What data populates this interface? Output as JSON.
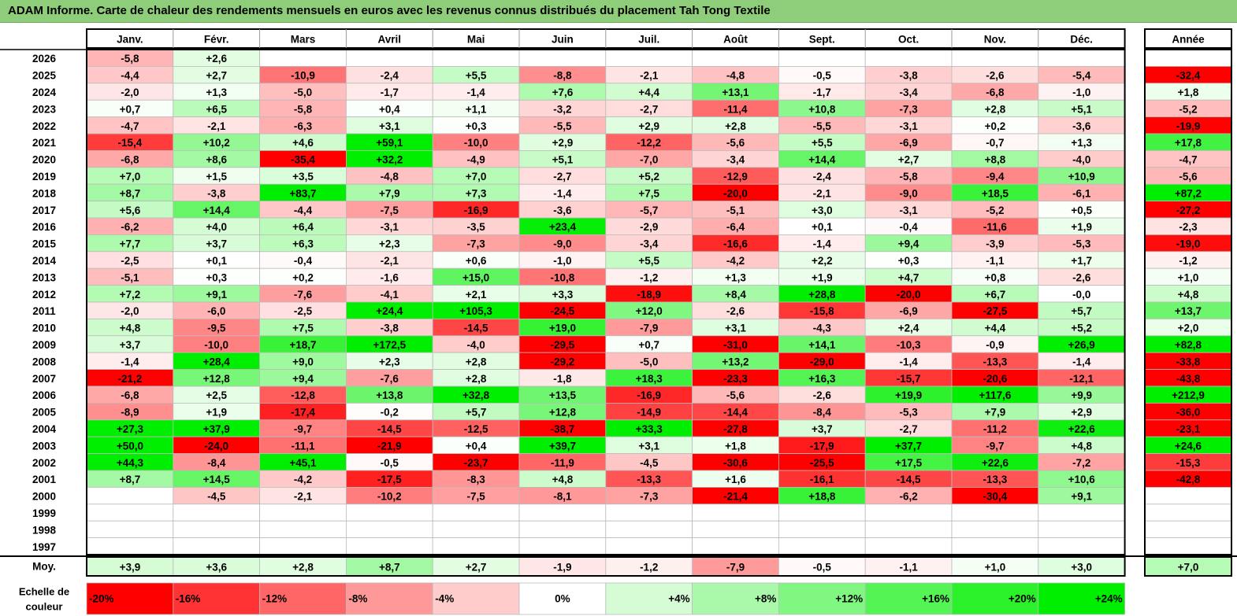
{
  "title": "ADAM Informe. Carte de chaleur des rendements mensuels en euros avec les revenus connus distribués du placement Tah Tong Textile",
  "chart_data": {
    "type": "heatmap",
    "columns": [
      "Janv.",
      "Févr.",
      "Mars",
      "Avril",
      "Mai",
      "Juin",
      "Juil.",
      "Août",
      "Sept.",
      "Oct.",
      "Nov.",
      "Déc."
    ],
    "year_column_label": "Année",
    "rows": [
      {
        "year": "2026",
        "months": [
          "-5,8",
          "+2,6",
          "",
          "",
          "",
          "",
          "",
          "",
          "",
          "",
          "",
          ""
        ],
        "annual": ""
      },
      {
        "year": "2025",
        "months": [
          "-4,4",
          "+2,7",
          "-10,9",
          "-2,4",
          "+5,5",
          "-8,8",
          "-2,1",
          "-4,8",
          "-0,5",
          "-3,8",
          "-2,6",
          "-5,4"
        ],
        "annual": "-32,4"
      },
      {
        "year": "2024",
        "months": [
          "-2,0",
          "+1,3",
          "-5,0",
          "-1,7",
          "-1,4",
          "+7,6",
          "+4,4",
          "+13,1",
          "-1,7",
          "-3,4",
          "-6,8",
          "-1,0"
        ],
        "annual": "+1,8"
      },
      {
        "year": "2023",
        "months": [
          "+0,7",
          "+6,5",
          "-5,8",
          "+0,4",
          "+1,1",
          "-3,2",
          "-2,7",
          "-11,4",
          "+10,8",
          "-7,3",
          "+2,8",
          "+5,1"
        ],
        "annual": "-5,2"
      },
      {
        "year": "2022",
        "months": [
          "-4,7",
          "-2,1",
          "-6,3",
          "+3,1",
          "+0,3",
          "-5,5",
          "+2,9",
          "+2,8",
          "-5,5",
          "-3,1",
          "+0,2",
          "-3,6"
        ],
        "annual": "-19,9"
      },
      {
        "year": "2021",
        "months": [
          "-15,4",
          "+10,2",
          "+4,6",
          "+59,1",
          "-10,0",
          "+2,9",
          "-12,2",
          "-5,6",
          "+5,5",
          "-6,9",
          "-0,7",
          "+1,3"
        ],
        "annual": "+17,8"
      },
      {
        "year": "2020",
        "months": [
          "-6,8",
          "+8,6",
          "-35,4",
          "+32,2",
          "-4,9",
          "+5,1",
          "-7,0",
          "-3,4",
          "+14,4",
          "+2,7",
          "+8,8",
          "-4,0"
        ],
        "annual": "-4,7"
      },
      {
        "year": "2019",
        "months": [
          "+7,0",
          "+1,5",
          "+3,5",
          "-4,8",
          "+7,0",
          "-2,7",
          "+5,2",
          "-12,9",
          "-2,4",
          "-5,8",
          "-9,4",
          "+10,9"
        ],
        "annual": "-5,6"
      },
      {
        "year": "2018",
        "months": [
          "+8,7",
          "-3,8",
          "+83,7",
          "+7,9",
          "+7,3",
          "-1,4",
          "+7,5",
          "-20,0",
          "-2,1",
          "-9,0",
          "+18,5",
          "-6,1"
        ],
        "annual": "+87,2"
      },
      {
        "year": "2017",
        "months": [
          "+5,6",
          "+14,4",
          "-4,4",
          "-7,5",
          "-16,9",
          "-3,6",
          "-5,7",
          "-5,1",
          "+3,0",
          "-3,1",
          "-5,2",
          "+0,5"
        ],
        "annual": "-27,2"
      },
      {
        "year": "2016",
        "months": [
          "-6,2",
          "+4,0",
          "+6,4",
          "-3,1",
          "-3,5",
          "+23,4",
          "-2,9",
          "-6,4",
          "+0,1",
          "-0,4",
          "-11,6",
          "+1,9"
        ],
        "annual": "-2,3"
      },
      {
        "year": "2015",
        "months": [
          "+7,7",
          "+3,7",
          "+6,3",
          "+2,3",
          "-7,3",
          "-9,0",
          "-3,4",
          "-16,6",
          "-1,4",
          "+9,4",
          "-3,9",
          "-5,3"
        ],
        "annual": "-19,0"
      },
      {
        "year": "2014",
        "months": [
          "-2,5",
          "+0,1",
          "-0,4",
          "-2,1",
          "+0,6",
          "-1,0",
          "+5,5",
          "-4,2",
          "+2,2",
          "+0,3",
          "-1,1",
          "+1,7"
        ],
        "annual": "-1,2"
      },
      {
        "year": "2013",
        "months": [
          "-5,1",
          "+0,3",
          "+0,2",
          "-1,6",
          "+15,0",
          "-10,8",
          "-1,2",
          "+1,3",
          "+1,9",
          "+4,7",
          "+0,8",
          "-2,6"
        ],
        "annual": "+1,0"
      },
      {
        "year": "2012",
        "months": [
          "+7,2",
          "+9,1",
          "-7,6",
          "-4,1",
          "+2,1",
          "+3,3",
          "-18,9",
          "+8,4",
          "+28,8",
          "-20,0",
          "+6,7",
          "-0,0"
        ],
        "annual": "+4,8"
      },
      {
        "year": "2011",
        "months": [
          "-2,0",
          "-6,0",
          "-2,5",
          "+24,4",
          "+105,3",
          "-24,5",
          "+12,0",
          "-2,6",
          "-15,8",
          "-6,9",
          "-27,5",
          "+5,7"
        ],
        "annual": "+13,7"
      },
      {
        "year": "2010",
        "months": [
          "+4,8",
          "-9,5",
          "+7,5",
          "-3,8",
          "-14,5",
          "+19,0",
          "-7,9",
          "+3,1",
          "-4,3",
          "+2,4",
          "+4,4",
          "+5,2"
        ],
        "annual": "+2,0"
      },
      {
        "year": "2009",
        "months": [
          "+3,7",
          "-10,0",
          "+18,7",
          "+172,5",
          "-4,0",
          "-29,5",
          "+0,7",
          "-31,0",
          "+14,1",
          "-10,3",
          "-0,9",
          "+26,9"
        ],
        "annual": "+82,8"
      },
      {
        "year": "2008",
        "months": [
          "-1,4",
          "+28,4",
          "+9,0",
          "+2,3",
          "+2,8",
          "-29,2",
          "-5,0",
          "+13,2",
          "-29,0",
          "-1,4",
          "-13,3",
          "-1,4"
        ],
        "annual": "-33,8"
      },
      {
        "year": "2007",
        "months": [
          "-21,2",
          "+12,8",
          "+9,4",
          "-7,6",
          "+2,8",
          "-1,8",
          "+18,3",
          "-23,3",
          "+16,3",
          "-15,7",
          "-20,6",
          "-12,1"
        ],
        "annual": "-43,8"
      },
      {
        "year": "2006",
        "months": [
          "-6,8",
          "+2,5",
          "-12,8",
          "+13,8",
          "+32,8",
          "+13,5",
          "-16,9",
          "-5,6",
          "-2,6",
          "+19,9",
          "+117,6",
          "+9,9"
        ],
        "annual": "+212,9"
      },
      {
        "year": "2005",
        "months": [
          "-8,9",
          "+1,9",
          "-17,4",
          "-0,2",
          "+5,7",
          "+12,8",
          "-14,9",
          "-14,4",
          "-8,4",
          "-5,3",
          "+7,9",
          "+2,9"
        ],
        "annual": "-36,0"
      },
      {
        "year": "2004",
        "months": [
          "+27,3",
          "+37,9",
          "-9,7",
          "-14,5",
          "-12,5",
          "-38,7",
          "+33,3",
          "-27,8",
          "+3,7",
          "-2,7",
          "-11,2",
          "+22,6"
        ],
        "annual": "-23,1"
      },
      {
        "year": "2003",
        "months": [
          "+50,0",
          "-24,0",
          "-11,1",
          "-21,9",
          "+0,4",
          "+39,7",
          "+3,1",
          "+1,8",
          "-17,9",
          "+37,7",
          "-9,7",
          "+4,8"
        ],
        "annual": "+24,6"
      },
      {
        "year": "2002",
        "months": [
          "+44,3",
          "-8,4",
          "+45,1",
          "-0,5",
          "-23,7",
          "-11,9",
          "-4,5",
          "-30,6",
          "-25,5",
          "+17,5",
          "+22,6",
          "-7,2"
        ],
        "annual": "-15,3"
      },
      {
        "year": "2001",
        "months": [
          "+8,7",
          "+14,5",
          "-4,2",
          "-17,5",
          "-8,3",
          "+4,8",
          "-13,3",
          "+1,6",
          "-16,1",
          "-14,5",
          "-13,3",
          "+10,6"
        ],
        "annual": "-42,8"
      },
      {
        "year": "2000",
        "months": [
          "",
          "-4,5",
          "-2,1",
          "-10,2",
          "-7,5",
          "-8,1",
          "-7,3",
          "-21,4",
          "+18,8",
          "-6,2",
          "-30,4",
          "+9,1"
        ],
        "annual": ""
      },
      {
        "year": "1999",
        "months": [
          "",
          "",
          "",
          "",
          "",
          "",
          "",
          "",
          "",
          "",
          "",
          ""
        ],
        "annual": ""
      },
      {
        "year": "1998",
        "months": [
          "",
          "",
          "",
          "",
          "",
          "",
          "",
          "",
          "",
          "",
          "",
          ""
        ],
        "annual": ""
      },
      {
        "year": "1997",
        "months": [
          "",
          "",
          "",
          "",
          "",
          "",
          "",
          "",
          "",
          "",
          "",
          ""
        ],
        "annual": ""
      }
    ],
    "average": {
      "label": "Moy.",
      "months": [
        "+3,9",
        "+3,6",
        "+2,8",
        "+8,7",
        "+2,7",
        "-1,9",
        "-1,2",
        "-7,9",
        "-0,5",
        "-1,1",
        "+1,0",
        "+3,0"
      ],
      "annual": "+7,0"
    },
    "color_scale": {
      "label_line1": "Echelle de",
      "label_line2": "couleur",
      "stops": [
        "-20%",
        "-16%",
        "-12%",
        "-8%",
        "-4%",
        "0%",
        "+4%",
        "+8%",
        "+12%",
        "+16%",
        "+20%",
        "+24%"
      ],
      "stop_values": [
        -20,
        -16,
        -12,
        -8,
        -4,
        0,
        4,
        8,
        12,
        16,
        20,
        24
      ]
    },
    "colors": {
      "negative": "#ff0000",
      "positive": "#00ee00",
      "neutral": "#ffffff",
      "title_bar": "#8ece7a"
    }
  }
}
